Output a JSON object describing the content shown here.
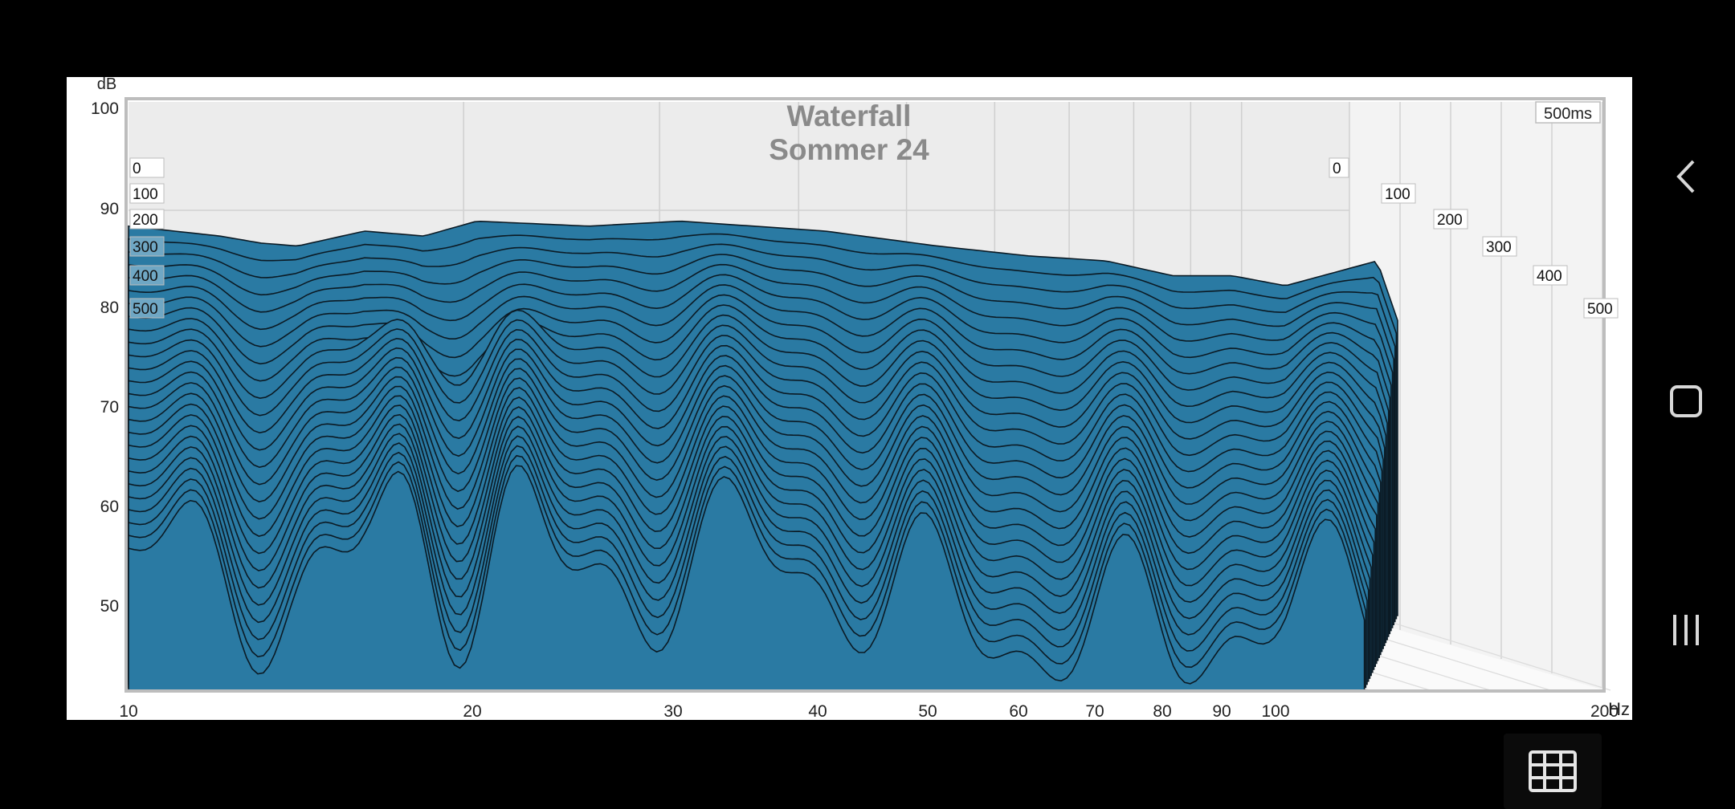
{
  "chart_data": {
    "type": "waterfall",
    "title": "Waterfall",
    "subtitle": "Sommer 24",
    "ylabel": "dB",
    "xunit": "Hz",
    "xscale": "log",
    "xlim": [
      10,
      200
    ],
    "ylim": [
      42,
      100
    ],
    "x_ticks": [
      "10",
      "20",
      "30",
      "40",
      "50",
      "60",
      "70",
      "80",
      "90",
      "100",
      "200"
    ],
    "y_ticks": [
      "100",
      "90",
      "80",
      "70",
      "60",
      "50"
    ],
    "time_axis_label": "500ms",
    "time_ticks_left": [
      "0",
      "100",
      "200",
      "300",
      "400",
      "500"
    ],
    "time_ticks_right": [
      "0",
      "100",
      "200",
      "300",
      "400",
      "500"
    ],
    "time_range_ms": [
      0,
      500
    ],
    "grid": true,
    "fill_color": "#2a7aa3",
    "line_color": "#0b1a24",
    "series_summary": [
      {
        "time_ms": 0,
        "x": [
          10,
          12,
          13,
          14,
          16,
          18,
          20,
          25,
          30,
          40,
          50,
          60,
          70,
          80,
          90,
          100,
          120,
          125
        ],
        "y": [
          87.5,
          86.5,
          85.8,
          85.5,
          87,
          86.5,
          88,
          87.5,
          88,
          87,
          85.5,
          84.5,
          84,
          82.5,
          82.5,
          81.5,
          84,
          78
        ]
      }
    ]
  },
  "icons": {
    "back": "chevron-left-icon",
    "home": "square-outline-icon",
    "recent": "three-bars-icon",
    "grid": "grid-table-icon"
  }
}
